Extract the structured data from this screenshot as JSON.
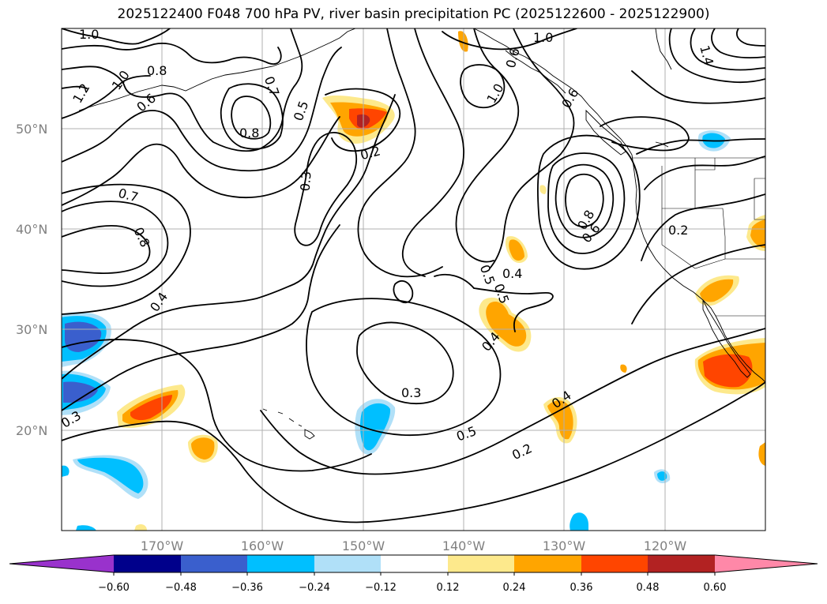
{
  "title": "2025122400 F048 700 hPa PV, river basin precipitation PC (2025122600 - 2025122900)",
  "map": {
    "lat_labels": [
      "50°N",
      "40°N",
      "30°N",
      "20°N"
    ],
    "lon_labels": [
      "170°W",
      "160°W",
      "150°W",
      "140°W",
      "130°W",
      "120°W"
    ],
    "contour_labels": [
      "1.0",
      "1.2",
      "1.0",
      "0.8",
      "0.6",
      "0.7",
      "0.5",
      "0.8",
      "0.2",
      "0.3",
      "1.0",
      "1.0",
      "0.6",
      "0.6",
      "1.4",
      "0.7",
      "0.8",
      "0.4",
      "0.8",
      "0.6",
      "0.2",
      "0.5",
      "0.5",
      "0.4",
      "0.4",
      "0.3",
      "0.5",
      "0.4",
      "0.2",
      "0.3"
    ],
    "shading_colors": {
      "pos_low": "#fde98c",
      "pos_mid": "#ffa500",
      "pos_high": "#ff4500",
      "pos_max": "#b22222",
      "neg_low": "#b0e0f8",
      "neg_mid": "#00bfff",
      "neg_high": "#3a5fcd"
    }
  },
  "colorbar": {
    "colors": [
      "#9932cc",
      "#00008b",
      "#3a5fcd",
      "#00bfff",
      "#b0e0f8",
      "#ffffff",
      "#fde98c",
      "#ffa500",
      "#ff4500",
      "#b22222",
      "#ff88a8"
    ],
    "tick_labels": [
      "−0.60",
      "−0.48",
      "−0.36",
      "−0.24",
      "−0.12",
      "0.12",
      "0.24",
      "0.36",
      "0.48",
      "0.60"
    ]
  }
}
